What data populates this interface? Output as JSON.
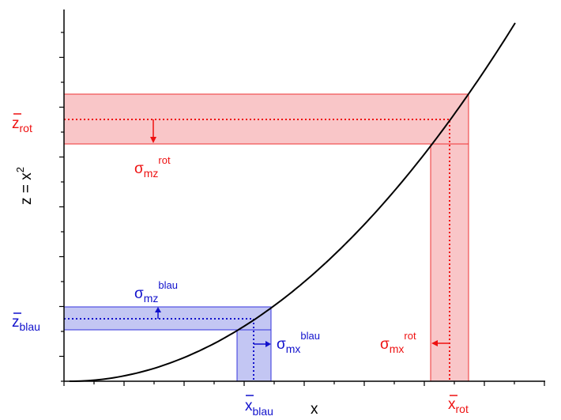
{
  "colors": {
    "red": "#ee1111",
    "red_fill": "#f9c6c8",
    "red_stroke": "#ee3333",
    "blue": "#1111cc",
    "blue_fill": "#c3c6f3",
    "blue_stroke": "#3333dd",
    "curve": "#000000"
  },
  "labels": {
    "xlabel": "x",
    "ylabel": "z = x",
    "ylabel_exp": "2",
    "z_rot": "z",
    "z_rot_sub": "rot",
    "z_blau": "z",
    "z_blau_sub": "blau",
    "x_rot": "x",
    "x_rot_sub": "rot",
    "x_blau": "x",
    "x_blau_sub": "blau",
    "sigma_mz_rot": "σ",
    "sigma_mz_rot_sub": "mz",
    "sigma_mz_rot_sup": "rot",
    "sigma_mz_blau": "σ",
    "sigma_mz_blau_sub": "mz",
    "sigma_mz_blau_sup": "blau",
    "sigma_mx_blau": "σ",
    "sigma_mx_blau_sub": "mx",
    "sigma_mx_blau_sup": "blau",
    "sigma_mx_rot": "σ",
    "sigma_mx_rot_sub": "mx",
    "sigma_mx_rot_sup": "rot"
  }
}
